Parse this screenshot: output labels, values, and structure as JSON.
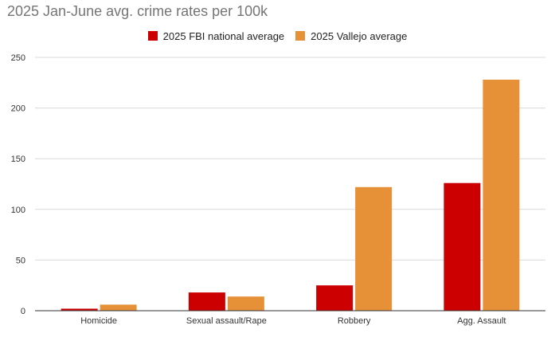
{
  "chart_data": {
    "type": "bar",
    "title": "2025 Jan-June avg. crime rates per 100k",
    "categories": [
      "Homicide",
      "Sexual assault/Rape",
      "Robbery",
      "Agg. Assault"
    ],
    "series": [
      {
        "name": "2025 FBI national average",
        "color": "#cc0000",
        "values": [
          2,
          18,
          25,
          126
        ]
      },
      {
        "name": "2025 Vallejo average",
        "color": "#e69138",
        "values": [
          6,
          14,
          122,
          228
        ]
      }
    ],
    "xlabel": "",
    "ylabel": "",
    "ylim": [
      0,
      250
    ],
    "yticks": [
      0,
      50,
      100,
      150,
      200,
      250
    ],
    "grid": true,
    "legend_position": "top"
  }
}
